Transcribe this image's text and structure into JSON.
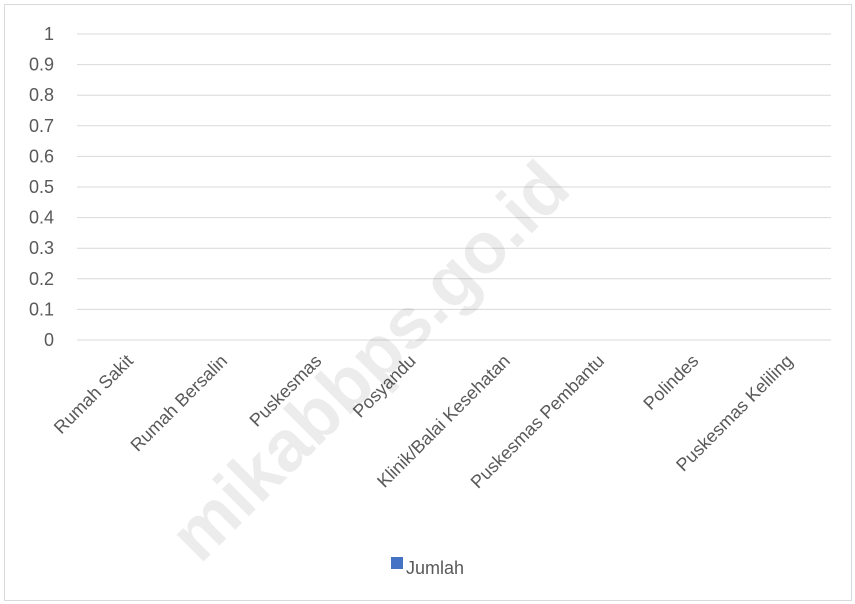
{
  "chart_data": {
    "type": "bar",
    "categories": [
      "Rumah Sakit",
      "Rumah Bersalin",
      "Puskesmas",
      "Posyandu",
      "Klinik/Balai Kesehatan",
      "Puskesmas Pembantu",
      "Polindes",
      "Puskesmas Keliling"
    ],
    "series": [
      {
        "name": "Jumlah",
        "values": [
          0,
          0,
          0,
          0,
          0,
          0,
          0,
          0
        ],
        "color": "#4472c4"
      }
    ],
    "ylim": [
      0,
      1
    ],
    "yticks": [
      "0",
      "0.1",
      "0.2",
      "0.3",
      "0.4",
      "0.5",
      "0.6",
      "0.7",
      "0.8",
      "0.9",
      "1"
    ],
    "grid": true,
    "legend_position": "bottom",
    "gridline_color": "#d9d9d9",
    "text_color": "#595959"
  },
  "watermark": "mikabbps.go.id"
}
